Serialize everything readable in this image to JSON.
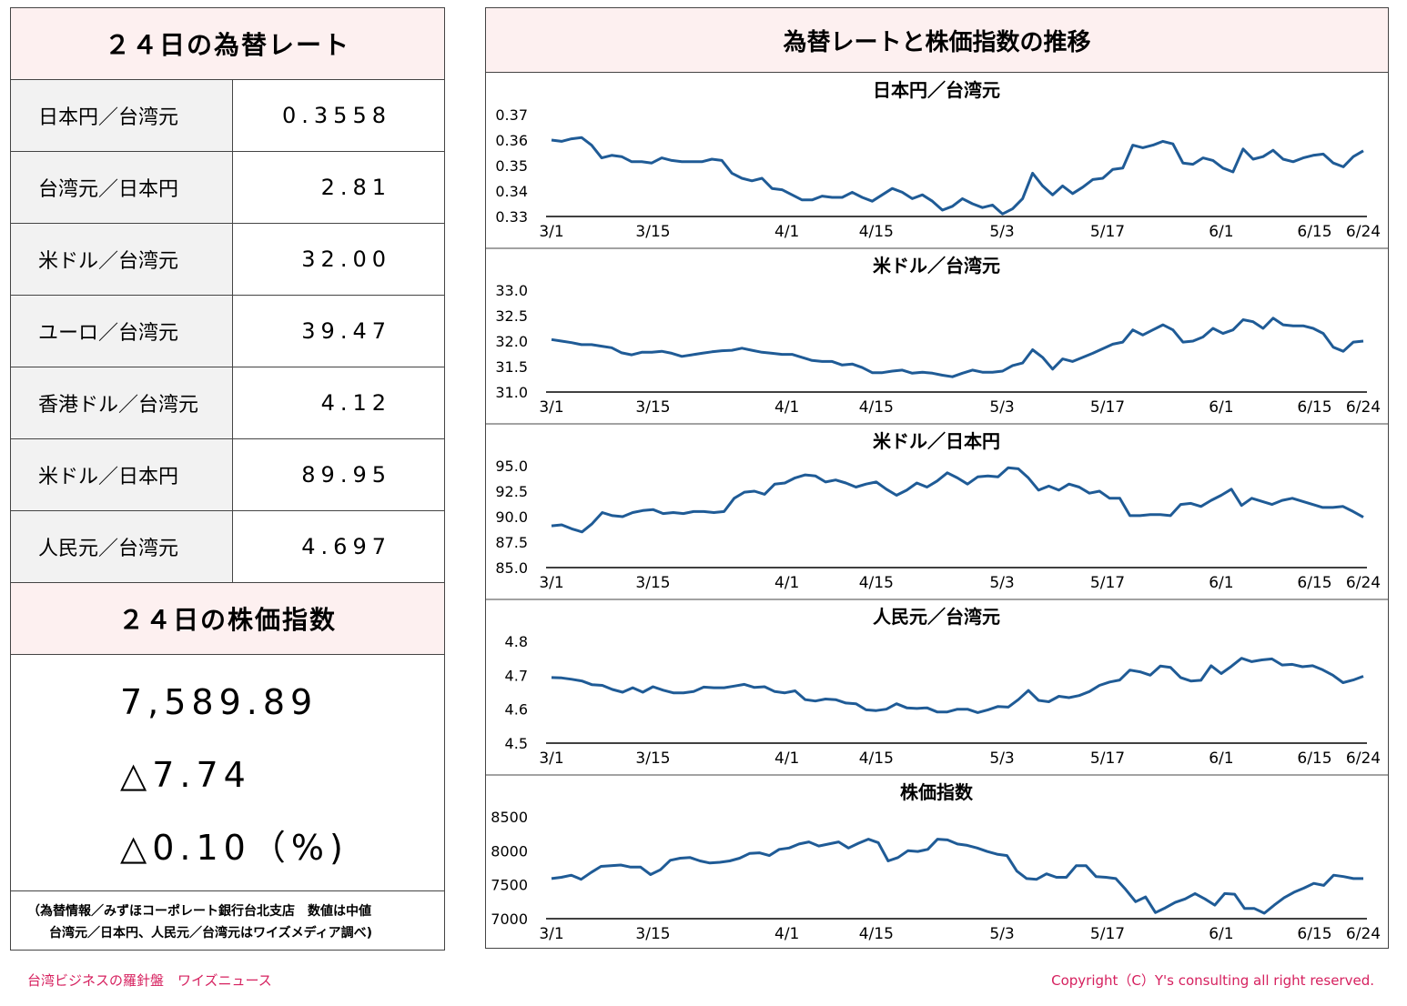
{
  "left": {
    "rates_title": "２４日の為替レート",
    "rates": [
      {
        "name": "日本円／台湾元",
        "value": "0.3558"
      },
      {
        "name": "台湾元／日本円",
        "value": "2.81"
      },
      {
        "name": "米ドル／台湾元",
        "value": "32.00"
      },
      {
        "name": "ユーロ／台湾元",
        "value": "39.47"
      },
      {
        "name": "香港ドル／台湾元",
        "value": "4.12"
      },
      {
        "name": "米ドル／日本円",
        "value": "89.95"
      },
      {
        "name": "人民元／台湾元",
        "value": "4.697"
      }
    ],
    "stock_title": "２４日の株価指数",
    "stock_value": "7,589.89",
    "stock_change": "△7.74",
    "stock_pct": "△0.10（%)",
    "note_line1": "（為替情報／みずほコーポレート銀行台北支店　数値は中値",
    "note_line2": "台湾元／日本円、人民元／台湾元はワイズメディア調べ)"
  },
  "right_title": "為替レートと株価指数の推移",
  "colors": {
    "line": "#1f5b96",
    "header_bg": "#fdf0f0",
    "footer": "#d6215f"
  },
  "chart_data": [
    {
      "type": "line",
      "title": "日本円／台湾元",
      "ylim": [
        0.33,
        0.37
      ],
      "yticks": [
        "0.37",
        "0.36",
        "0.35",
        "0.34",
        "0.33"
      ],
      "xticks": [
        "3/1",
        "3/15",
        "4/1",
        "4/15",
        "5/3",
        "5/17",
        "6/1",
        "6/15",
        "6/24"
      ],
      "values": [
        0.36,
        0.3595,
        0.3605,
        0.361,
        0.358,
        0.353,
        0.354,
        0.3535,
        0.3515,
        0.3515,
        0.351,
        0.353,
        0.352,
        0.3515,
        0.3515,
        0.3515,
        0.3525,
        0.352,
        0.347,
        0.345,
        0.344,
        0.345,
        0.341,
        0.3405,
        0.3385,
        0.3365,
        0.3365,
        0.338,
        0.3375,
        0.3375,
        0.3395,
        0.3375,
        0.336,
        0.3385,
        0.341,
        0.3395,
        0.337,
        0.3385,
        0.336,
        0.3325,
        0.334,
        0.337,
        0.335,
        0.3335,
        0.3345,
        0.331,
        0.333,
        0.337,
        0.347,
        0.342,
        0.3385,
        0.342,
        0.339,
        0.3415,
        0.3445,
        0.345,
        0.3485,
        0.349,
        0.358,
        0.357,
        0.358,
        0.3595,
        0.3585,
        0.351,
        0.3505,
        0.353,
        0.352,
        0.349,
        0.3475,
        0.3565,
        0.3525,
        0.3535,
        0.356,
        0.3525,
        0.3515,
        0.353,
        0.354,
        0.3545,
        0.351,
        0.3495,
        0.3535,
        0.3558
      ]
    },
    {
      "type": "line",
      "title": "米ドル／台湾元",
      "ylim": [
        31.0,
        33.0
      ],
      "yticks": [
        "33.0",
        "32.5",
        "32.0",
        "31.5",
        "31.0"
      ],
      "xticks": [
        "3/1",
        "3/15",
        "4/1",
        "4/15",
        "5/3",
        "5/17",
        "6/1",
        "6/15",
        "6/24"
      ],
      "values": [
        32.03,
        32.0,
        31.97,
        31.93,
        31.93,
        31.9,
        31.87,
        31.77,
        31.73,
        31.78,
        31.78,
        31.8,
        31.76,
        31.7,
        31.73,
        31.76,
        31.79,
        31.81,
        31.82,
        31.86,
        31.82,
        31.78,
        31.76,
        31.74,
        31.74,
        31.68,
        31.62,
        31.6,
        31.6,
        31.53,
        31.55,
        31.48,
        31.38,
        31.38,
        31.41,
        31.43,
        31.37,
        31.39,
        31.37,
        31.33,
        31.3,
        31.37,
        31.43,
        31.39,
        31.39,
        31.41,
        31.52,
        31.57,
        31.83,
        31.68,
        31.45,
        31.65,
        31.6,
        31.68,
        31.76,
        31.85,
        31.94,
        31.98,
        32.22,
        32.12,
        32.22,
        32.32,
        32.22,
        31.98,
        32.0,
        32.08,
        32.25,
        32.15,
        32.22,
        32.42,
        32.38,
        32.25,
        32.45,
        32.32,
        32.3,
        32.3,
        32.25,
        32.15,
        31.88,
        31.8,
        31.98,
        32.0
      ]
    },
    {
      "type": "line",
      "title": "米ドル／日本円",
      "ylim": [
        85.0,
        95.0
      ],
      "yticks": [
        "95.0",
        "92.5",
        "90.0",
        "87.5",
        "85.0"
      ],
      "xticks": [
        "3/1",
        "3/15",
        "4/1",
        "4/15",
        "5/3",
        "5/17",
        "6/1",
        "6/15",
        "6/24"
      ],
      "values": [
        89.1,
        89.2,
        88.8,
        88.5,
        89.3,
        90.4,
        90.1,
        90.0,
        90.4,
        90.6,
        90.7,
        90.3,
        90.4,
        90.3,
        90.5,
        90.5,
        90.4,
        90.5,
        91.8,
        92.4,
        92.5,
        92.2,
        93.2,
        93.3,
        93.8,
        94.1,
        94.0,
        93.4,
        93.6,
        93.3,
        92.9,
        93.2,
        93.4,
        92.7,
        92.1,
        92.6,
        93.3,
        92.9,
        93.5,
        94.3,
        93.8,
        93.2,
        93.9,
        94.0,
        93.9,
        94.8,
        94.7,
        93.8,
        92.6,
        93.0,
        92.6,
        93.2,
        92.9,
        92.3,
        92.5,
        91.8,
        91.8,
        90.1,
        90.1,
        90.2,
        90.2,
        90.1,
        91.2,
        91.3,
        91.0,
        91.6,
        92.1,
        92.7,
        91.1,
        91.8,
        91.5,
        91.2,
        91.6,
        91.8,
        91.5,
        91.2,
        90.9,
        90.9,
        91.0,
        90.5,
        89.95
      ]
    },
    {
      "type": "line",
      "title": "人民元／台湾元",
      "ylim": [
        4.5,
        4.8
      ],
      "yticks": [
        "4.8",
        "4.7",
        "4.6",
        "4.5"
      ],
      "xticks": [
        "3/1",
        "3/15",
        "4/1",
        "4/15",
        "5/3",
        "5/17",
        "6/1",
        "6/15",
        "6/24"
      ],
      "values": [
        4.693,
        4.692,
        4.688,
        4.683,
        4.672,
        4.67,
        4.658,
        4.65,
        4.663,
        4.65,
        4.666,
        4.656,
        4.648,
        4.648,
        4.652,
        4.665,
        4.663,
        4.663,
        4.668,
        4.673,
        4.664,
        4.666,
        4.652,
        4.648,
        4.654,
        4.628,
        4.624,
        4.63,
        4.628,
        4.618,
        4.616,
        4.598,
        4.596,
        4.6,
        4.616,
        4.604,
        4.602,
        4.604,
        4.592,
        4.592,
        4.6,
        4.6,
        4.59,
        4.598,
        4.608,
        4.606,
        4.628,
        4.655,
        4.626,
        4.622,
        4.638,
        4.634,
        4.64,
        4.652,
        4.67,
        4.68,
        4.686,
        4.715,
        4.71,
        4.7,
        4.727,
        4.723,
        4.693,
        4.683,
        4.685,
        4.728,
        4.705,
        4.726,
        4.75,
        4.74,
        4.745,
        4.748,
        4.73,
        4.732,
        4.725,
        4.728,
        4.716,
        4.7,
        4.678,
        4.686,
        4.697
      ]
    },
    {
      "type": "line",
      "title": "株価指数",
      "ylim": [
        7000,
        8500
      ],
      "yticks": [
        "8500",
        "8000",
        "7500",
        "7000"
      ],
      "xticks": [
        "3/1",
        "3/15",
        "4/1",
        "4/15",
        "5/3",
        "5/17",
        "6/1",
        "6/15",
        "6/24"
      ],
      "values": [
        7590,
        7610,
        7640,
        7580,
        7680,
        7770,
        7780,
        7790,
        7760,
        7760,
        7650,
        7720,
        7860,
        7890,
        7900,
        7850,
        7820,
        7830,
        7850,
        7890,
        7960,
        7970,
        7930,
        8020,
        8040,
        8100,
        8130,
        8070,
        8100,
        8130,
        8040,
        8110,
        8170,
        8120,
        7850,
        7900,
        8000,
        7990,
        8020,
        8170,
        8160,
        8100,
        8080,
        8040,
        7990,
        7950,
        7930,
        7700,
        7590,
        7580,
        7660,
        7610,
        7610,
        7780,
        7780,
        7620,
        7610,
        7590,
        7430,
        7250,
        7320,
        7090,
        7160,
        7240,
        7290,
        7370,
        7290,
        7200,
        7370,
        7360,
        7150,
        7150,
        7080,
        7200,
        7310,
        7390,
        7450,
        7520,
        7490,
        7640,
        7620,
        7590,
        7590
      ]
    }
  ],
  "footer_left": "台湾ビジネスの羅針盤　ワイズニュース",
  "footer_right": "Copyright（C）Y's consulting all right reserved."
}
